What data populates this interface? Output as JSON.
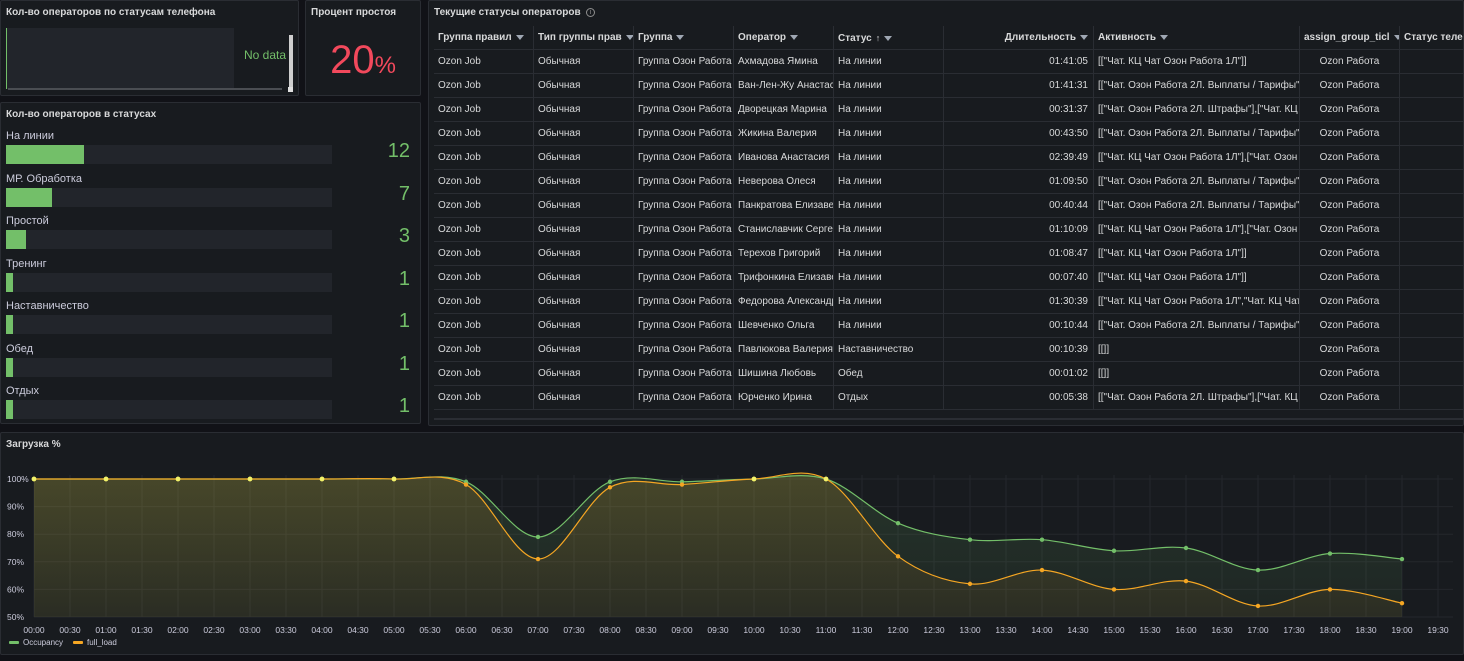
{
  "panels": {
    "phone": {
      "title": "Кол-во операторов по статусам телефона",
      "no_data": "No data"
    },
    "idle": {
      "title": "Процент простоя",
      "value": "20",
      "unit": "%"
    },
    "status_counts": {
      "title": "Кол-во операторов в статусах",
      "max": 50,
      "items": [
        {
          "label": "На линии",
          "value": 12
        },
        {
          "label": "МР. Обработка",
          "value": 7
        },
        {
          "label": "Простой",
          "value": 3
        },
        {
          "label": "Тренинг",
          "value": 1
        },
        {
          "label": "Наставничество",
          "value": 1
        },
        {
          "label": "Обед",
          "value": 1
        },
        {
          "label": "Отдых",
          "value": 1
        }
      ]
    },
    "table": {
      "title": "Текущие статусы операторов",
      "info_icon": "info-icon",
      "columns": [
        "Группа правил",
        "Тип группы прав",
        "Группа",
        "Оператор",
        "Статус",
        "Длительность",
        "Активность",
        "assign_group_ticl",
        "Статус теле"
      ],
      "rows": [
        [
          "Ozon Job",
          "Обычная",
          "Группа Озон Работа",
          "Ахмадова Ямина",
          "На линии",
          "01:41:05",
          "[[\"Чат. КЦ Чат Озон Работа 1Л\"]]",
          "Ozon Работа"
        ],
        [
          "Ozon Job",
          "Обычная",
          "Группа Озон Работа",
          "Ван-Лен-Жу Анастасия",
          "На линии",
          "01:41:31",
          "[[\"Чат. Озон Работа 2Л. Выплаты / Тарифы\"",
          "Ozon Работа"
        ],
        [
          "Ozon Job",
          "Обычная",
          "Группа Озон Работа",
          "Дворецкая Марина",
          "На линии",
          "00:31:37",
          "[[\"Чат. Озон Работа 2Л. Штрафы\"],[\"Чат. КЦ",
          "Ozon Работа"
        ],
        [
          "Ozon Job",
          "Обычная",
          "Группа Озон Работа",
          "Жикина Валерия",
          "На линии",
          "00:43:50",
          "[[\"Чат. Озон Работа 2Л. Выплаты / Тарифы\"",
          "Ozon Работа"
        ],
        [
          "Ozon Job",
          "Обычная",
          "Группа Озон Работа",
          "Иванова Анастасия",
          "На линии",
          "02:39:49",
          "[[\"Чат. КЦ Чат Озон Работа 1Л\"],[\"Чат. Озон",
          "Ozon Работа"
        ],
        [
          "Ozon Job",
          "Обычная",
          "Группа Озон Работа",
          "Неверова Олеся",
          "На линии",
          "01:09:50",
          "[[\"Чат. Озон Работа 2Л. Выплаты / Тарифы\"",
          "Ozon Работа"
        ],
        [
          "Ozon Job",
          "Обычная",
          "Группа Озон Работа",
          "Панкратова Елизавета",
          "На линии",
          "00:40:44",
          "[[\"Чат. Озон Работа 2Л. Выплаты / Тарифы\"",
          "Ozon Работа"
        ],
        [
          "Ozon Job",
          "Обычная",
          "Группа Озон Работа",
          "Станиславчик Сергей",
          "На линии",
          "01:10:09",
          "[[\"Чат. КЦ Чат Озон Работа 1Л\"],[\"Чат. Озон",
          "Ozon Работа"
        ],
        [
          "Ozon Job",
          "Обычная",
          "Группа Озон Работа",
          "Терехов Григорий",
          "На линии",
          "01:08:47",
          "[[\"Чат. КЦ Чат Озон Работа 1Л\"]]",
          "Ozon Работа"
        ],
        [
          "Ozon Job",
          "Обычная",
          "Группа Озон Работа",
          "Трифонкина Елизавета",
          "На линии",
          "00:07:40",
          "[[\"Чат. КЦ Чат Озон Работа 1Л\"]]",
          "Ozon Работа"
        ],
        [
          "Ozon Job",
          "Обычная",
          "Группа Озон Работа",
          "Федорова Александра",
          "На линии",
          "01:30:39",
          "[[\"Чат. КЦ Чат Озон Работа 1Л\",\"Чат. КЦ Чат",
          "Ozon Работа"
        ],
        [
          "Ozon Job",
          "Обычная",
          "Группа Озон Работа",
          "Шевченко Ольга",
          "На линии",
          "00:10:44",
          "[[\"Чат. Озон Работа 2Л. Выплаты / Тарифы\"",
          "Ozon Работа"
        ],
        [
          "Ozon Job",
          "Обычная",
          "Группа Озон Работа",
          "Павлюкова Валерия",
          "Наставничество",
          "00:10:39",
          "[[]]",
          "Ozon Работа"
        ],
        [
          "Ozon Job",
          "Обычная",
          "Группа Озон Работа",
          "Шишина Любовь",
          "Обед",
          "00:01:02",
          "[[]]",
          "Ozon Работа"
        ],
        [
          "Ozon Job",
          "Обычная",
          "Группа Озон Работа",
          "Юрченко Ирина",
          "Отдых",
          "00:05:38",
          "[[\"Чат. Озон Работа 2Л. Штрафы\"],[\"Чат. КЦ",
          "Ozon Работа"
        ]
      ]
    },
    "load": {
      "title": "Загрузка %"
    }
  },
  "colors": {
    "green": "#73bf69",
    "red": "#f2495c",
    "orange": "#f5a623",
    "yellow": "#f2f26a"
  },
  "chart_data": {
    "type": "line",
    "title": "Загрузка %",
    "x": [
      "00:00",
      "01:00",
      "02:00",
      "03:00",
      "04:00",
      "05:00",
      "06:00",
      "07:00",
      "08:00",
      "09:00",
      "10:00",
      "11:00",
      "12:00",
      "13:00",
      "14:00",
      "15:00",
      "16:00",
      "17:00",
      "18:00",
      "19:00"
    ],
    "x_ticks": [
      "00:00",
      "00:30",
      "01:00",
      "01:30",
      "02:00",
      "02:30",
      "03:00",
      "03:30",
      "04:00",
      "04:30",
      "05:00",
      "05:30",
      "06:00",
      "06:30",
      "07:00",
      "07:30",
      "08:00",
      "08:30",
      "09:00",
      "09:30",
      "10:00",
      "10:30",
      "11:00",
      "11:30",
      "12:00",
      "12:30",
      "13:00",
      "13:30",
      "14:00",
      "14:30",
      "15:00",
      "15:30",
      "16:00",
      "16:30",
      "17:00",
      "17:30",
      "18:00",
      "18:30",
      "19:00",
      "19:30"
    ],
    "y_ticks": [
      "100%",
      "90%",
      "80%",
      "70%",
      "60%",
      "50%"
    ],
    "ylim": [
      50,
      100
    ],
    "grid": true,
    "legend": "bottom-left",
    "series": [
      {
        "name": "Occupancy",
        "color": "#73bf69",
        "values": [
          100,
          100,
          100,
          100,
          100,
          100,
          99,
          79,
          99,
          99,
          100,
          100,
          84,
          78,
          78,
          74,
          75,
          67,
          73,
          71
        ]
      },
      {
        "name": "full_load",
        "color": "#f5a623",
        "values": [
          100,
          100,
          100,
          100,
          100,
          100,
          98,
          71,
          97,
          98,
          100,
          100,
          72,
          62,
          67,
          60,
          63,
          54,
          60,
          55
        ]
      }
    ]
  }
}
